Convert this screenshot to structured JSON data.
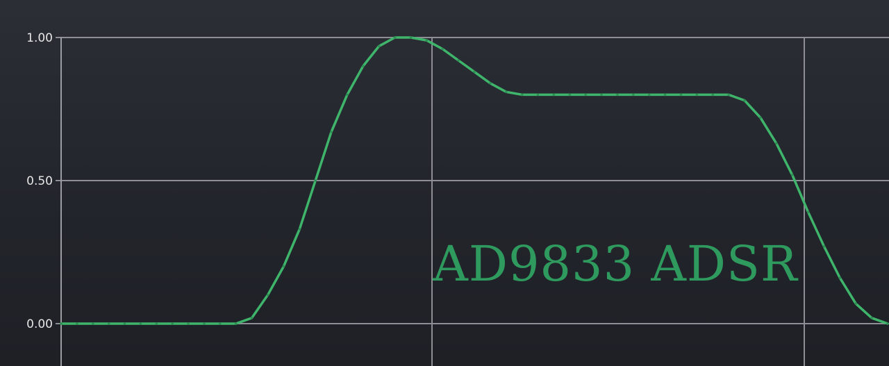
{
  "chart_data": {
    "type": "line",
    "title": "AD9833 ADSR",
    "xlabel": "",
    "ylabel": "",
    "ylim": [
      0,
      1
    ],
    "y_ticks": [
      "1.00",
      "0.50",
      "0.00"
    ],
    "grid": true,
    "series": [
      {
        "color": "#3fb56b",
        "x": [
          0,
          5,
          10,
          15,
          20,
          25,
          30,
          35,
          40,
          45,
          50,
          55,
          60,
          65,
          70,
          75,
          80,
          85,
          90,
          95,
          100,
          105,
          110,
          115,
          120,
          125,
          130,
          135,
          140,
          145,
          150,
          155,
          160,
          165,
          170,
          175,
          180,
          185,
          190,
          195,
          200,
          205,
          210,
          215,
          220,
          225,
          230,
          235,
          240,
          245,
          250,
          255,
          260
        ],
        "values": [
          0,
          0,
          0,
          0,
          0,
          0,
          0,
          0,
          0,
          0,
          0,
          0,
          0.02,
          0.1,
          0.2,
          0.33,
          0.5,
          0.67,
          0.8,
          0.9,
          0.97,
          1.0,
          1.0,
          0.99,
          0.96,
          0.92,
          0.88,
          0.84,
          0.81,
          0.8,
          0.8,
          0.8,
          0.8,
          0.8,
          0.8,
          0.8,
          0.8,
          0.8,
          0.8,
          0.8,
          0.8,
          0.8,
          0.8,
          0.78,
          0.72,
          0.63,
          0.52,
          0.39,
          0.27,
          0.16,
          0.07,
          0.02,
          0
        ]
      }
    ]
  }
}
